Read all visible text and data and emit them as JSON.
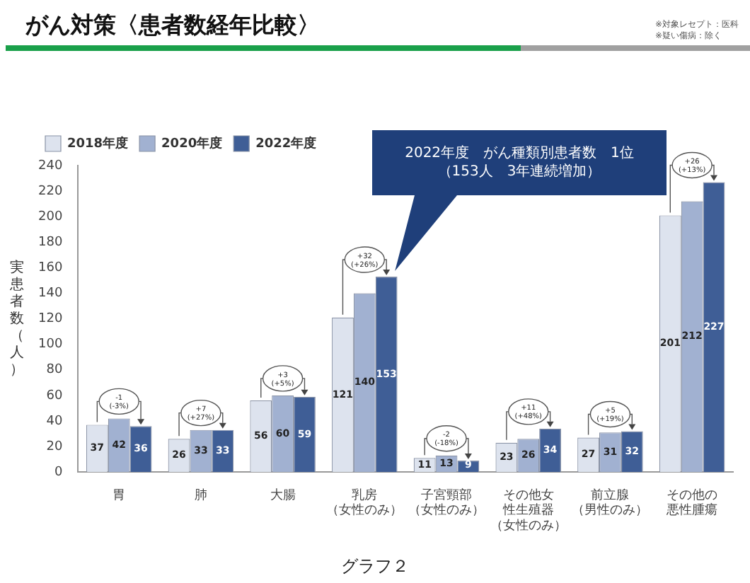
{
  "chart_data": {
    "type": "bar",
    "title": "がん対策〈患者数経年比較〉",
    "ylabel": "実患者数（人）",
    "categories": [
      "胃",
      "肺",
      "大腸",
      "乳房（女性のみ）",
      "子宮頸部（女性のみ）",
      "その他女性生殖器（女性のみ）",
      "前立腺（男性のみ）",
      "その他の悪性腫瘍"
    ],
    "series": [
      {
        "name": "2018年度",
        "color": "#dde3ee",
        "values": [
          37,
          26,
          56,
          121,
          11,
          23,
          27,
          201
        ]
      },
      {
        "name": "2020年度",
        "color": "#a1b1d1",
        "values": [
          42,
          33,
          60,
          140,
          13,
          26,
          31,
          212
        ]
      },
      {
        "name": "2022年度",
        "color": "#3f5e96",
        "values": [
          36,
          33,
          59,
          153,
          9,
          34,
          32,
          227
        ]
      }
    ],
    "ylim": [
      0,
      240
    ],
    "yticks": [
      0,
      20,
      40,
      60,
      80,
      100,
      120,
      140,
      160,
      180,
      200,
      220,
      240
    ],
    "grid": false,
    "legend": "top left",
    "data_labels": true,
    "annotations": [
      "※対象レセプト：医科",
      "※疑い傷病：除く",
      "2022年度　がん種類別患者数　1位（153人　3年連続増加）",
      "-1\n(-3%)",
      "+7\n(+27%)",
      "+3\n(+5%)",
      "+32\n(+26%)",
      "-2\n(-18%)",
      "+11\n(+48%)",
      "+5\n(+19%)",
      "+26\n(+13%)",
      "グラフ２"
    ]
  }
}
